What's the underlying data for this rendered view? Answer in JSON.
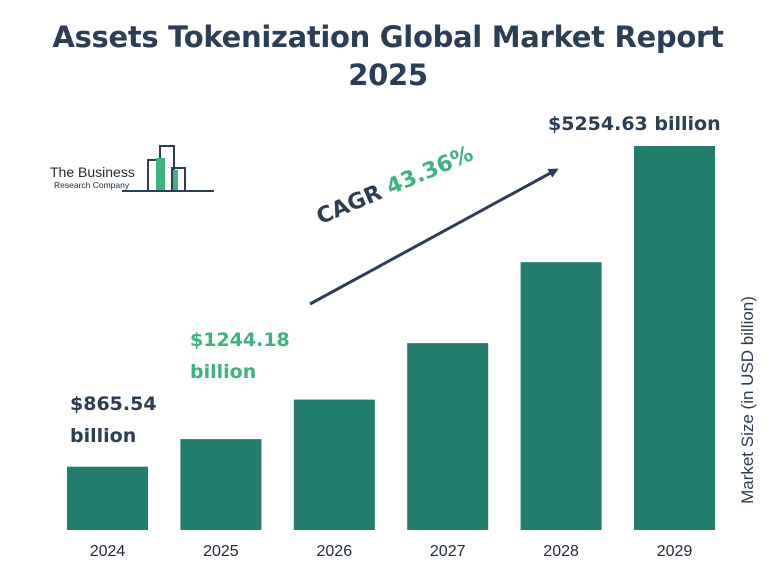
{
  "title": {
    "line1": "Assets Tokenization Global Market Report",
    "line2": "2025"
  },
  "logo": {
    "line1": "The Business",
    "line2": "Research Company",
    "colors": {
      "accent": "#3db380",
      "dark": "#2b3e55"
    }
  },
  "cagr": {
    "label": "CAGR",
    "value": "43.36%"
  },
  "annotations": {
    "first": {
      "line1": "$865.54",
      "line2": "billion"
    },
    "second": {
      "line1": "$1244.18",
      "line2": "billion"
    },
    "last": "$5254.63 billion"
  },
  "chart_data": {
    "type": "bar",
    "categories": [
      "2024",
      "2025",
      "2026",
      "2027",
      "2028",
      "2029"
    ],
    "values": [
      865.54,
      1244.18,
      1784,
      2557,
      3665,
      5254.63
    ],
    "title": "Assets Tokenization Global Market Report 2025",
    "xlabel": "",
    "ylabel": "Market Size (in USD billion)",
    "ylim": [
      0,
      5254.63
    ],
    "grid": false,
    "legend": "none",
    "bar_color": "#237d6d",
    "highlight_color": "#3db380",
    "text_color": "#2b3e55"
  }
}
